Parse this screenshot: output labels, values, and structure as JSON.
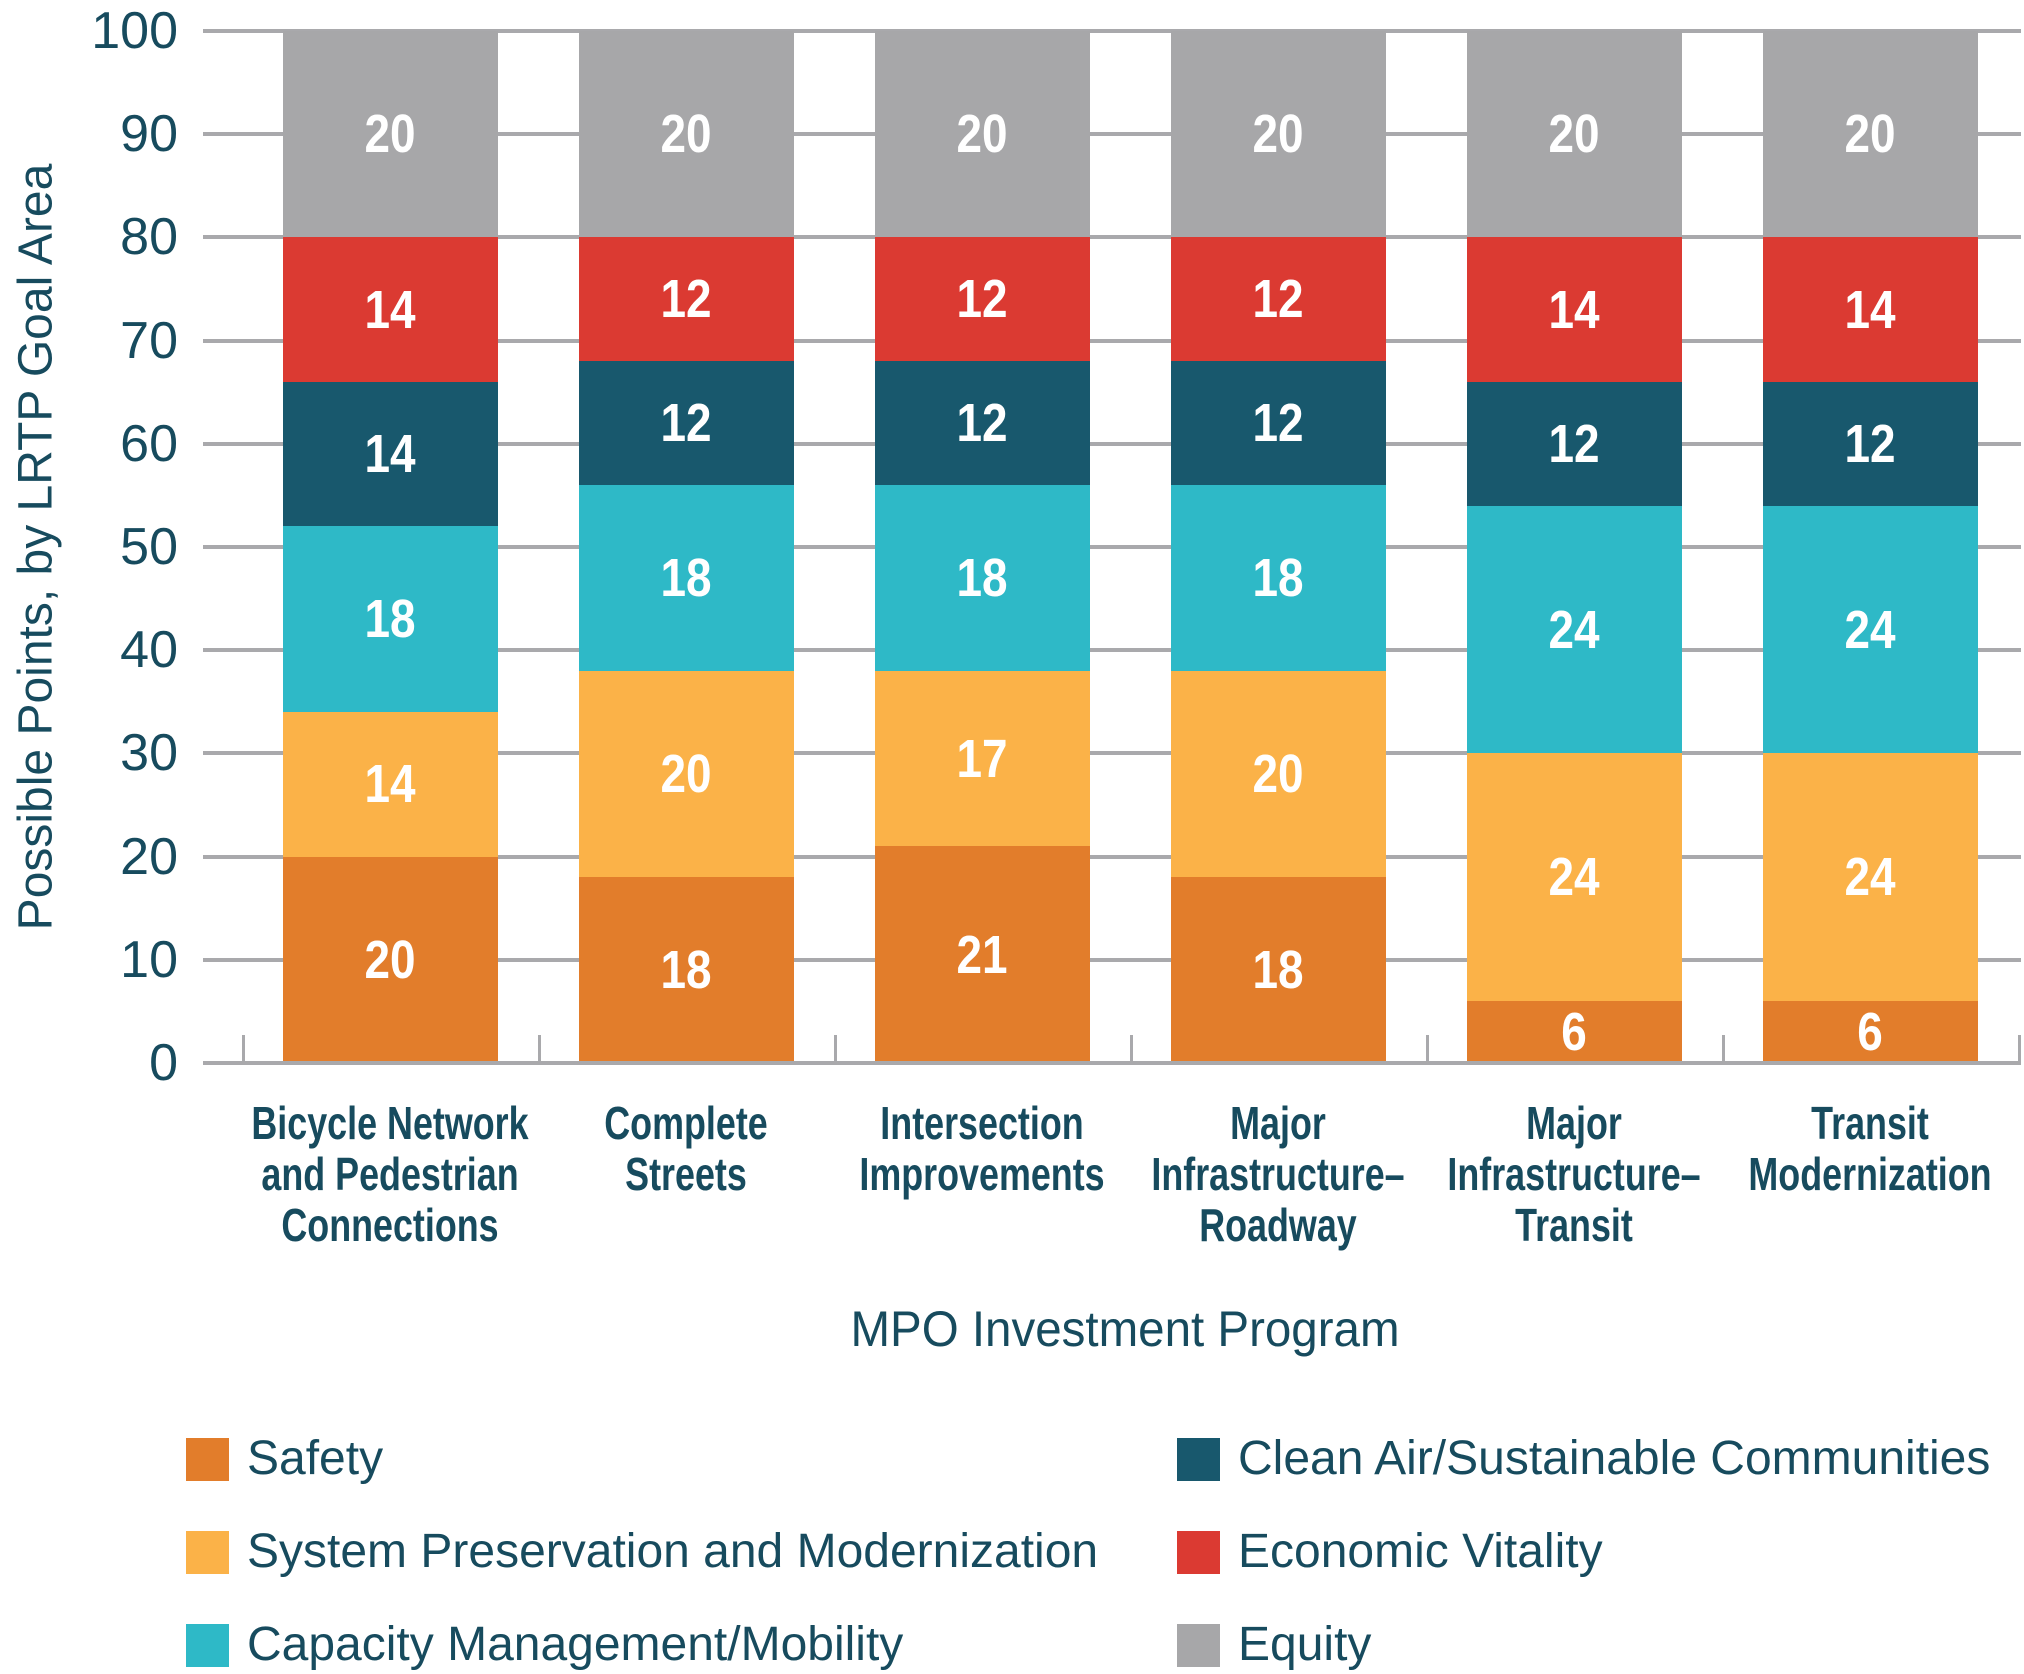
{
  "chart_data": {
    "type": "bar",
    "stacked": true,
    "title": "",
    "xlabel": "MPO Investment Program",
    "ylabel": "Possible Points, by LRTP Goal Area",
    "ylim": [
      0,
      100
    ],
    "yticks": [
      0,
      10,
      20,
      30,
      40,
      50,
      60,
      70,
      80,
      90,
      100
    ],
    "grid": true,
    "legend_position": "bottom-two-columns",
    "categories": [
      "Bicycle Network and Pedestrian Connections",
      "Complete Streets",
      "Intersection Improvements",
      "Major Infrastructure–Roadway",
      "Major Infrastructure–Transit",
      "Transit Modernization"
    ],
    "category_label_lines": [
      [
        "Bicycle Network",
        "and Pedestrian",
        "Connections"
      ],
      [
        "Complete",
        "Streets"
      ],
      [
        "Intersection",
        "Improvements"
      ],
      [
        "Major",
        "Infrastructure–",
        "Roadway"
      ],
      [
        "Major",
        "Infrastructure–",
        "Transit"
      ],
      [
        "Transit",
        "Modernization"
      ]
    ],
    "series": [
      {
        "name": "Safety",
        "color": "#E27D2B",
        "values": [
          20,
          18,
          21,
          18,
          6,
          6
        ]
      },
      {
        "name": "System Preservation and Modernization",
        "color": "#FBB248",
        "values": [
          14,
          20,
          17,
          20,
          24,
          24
        ]
      },
      {
        "name": "Capacity Management/Mobility",
        "color": "#2EB9C7",
        "values": [
          18,
          18,
          18,
          18,
          24,
          24
        ]
      },
      {
        "name": "Clean Air/Sustainable Communities",
        "color": "#18586D",
        "values": [
          14,
          12,
          12,
          12,
          12,
          12
        ]
      },
      {
        "name": "Economic Vitality",
        "color": "#DB3A32",
        "values": [
          14,
          12,
          12,
          12,
          14,
          14
        ]
      },
      {
        "name": "Equity",
        "color": "#A7A7A9",
        "values": [
          20,
          20,
          20,
          20,
          20,
          20
        ]
      }
    ],
    "legend_columns": [
      [
        0,
        1,
        2
      ],
      [
        3,
        4,
        5
      ]
    ]
  },
  "colors": {
    "axis_text": "#174B5E",
    "gridline": "#A9A9AC",
    "bar_value_text": "#FFFFFF",
    "background": "#FFFFFF"
  }
}
